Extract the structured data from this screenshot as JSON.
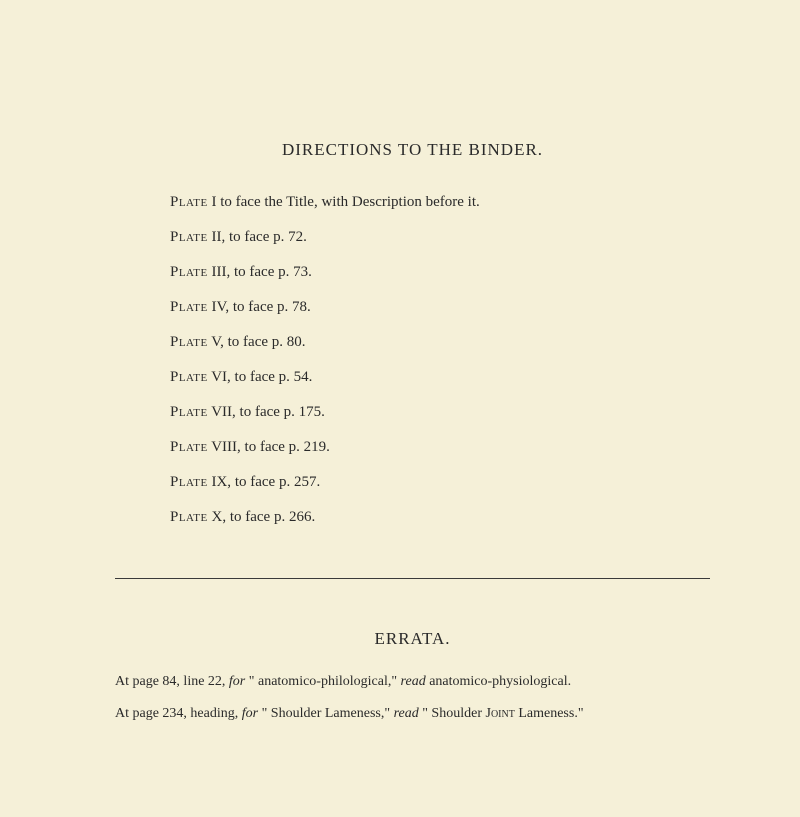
{
  "title": "DIRECTIONS TO THE BINDER.",
  "plates": [
    {
      "label": "Plate",
      "num": "I",
      "text": "to face the Title, with Description before it."
    },
    {
      "label": "Plate",
      "num": "II,",
      "text": "to face p. 72."
    },
    {
      "label": "Plate",
      "num": "III,",
      "text": "to face p. 73."
    },
    {
      "label": "Plate",
      "num": "IV,",
      "text": "to face p. 78."
    },
    {
      "label": "Plate",
      "num": "V,",
      "text": "to face p. 80."
    },
    {
      "label": "Plate",
      "num": "VI,",
      "text": "to face p. 54."
    },
    {
      "label": "Plate",
      "num": "VII,",
      "text": "to face p. 175."
    },
    {
      "label": "Plate",
      "num": "VIII,",
      "text": "to face p. 219."
    },
    {
      "label": "Plate",
      "num": "IX,",
      "text": "to face p. 257."
    },
    {
      "label": "Plate",
      "num": "X,",
      "text": "to face p. 266."
    }
  ],
  "errata_title": "ERRATA.",
  "errata": [
    {
      "prefix": "At page 84, line 22, ",
      "for_word": "for",
      "wrong": " \" anatomico-philological,\" ",
      "read_word": "read",
      "correct": " anatomico-physiological."
    },
    {
      "prefix": "At page 234, heading, ",
      "for_word": "for",
      "wrong": " \" Shoulder Lameness,\" ",
      "read_word": "read",
      "correct_pre": " \" Shoulder ",
      "joint": "Joint",
      "correct_post": " Lameness.\""
    }
  ],
  "colors": {
    "background": "#f5f0d8",
    "text": "#2a2a2a",
    "divider": "#3a3a3a"
  }
}
